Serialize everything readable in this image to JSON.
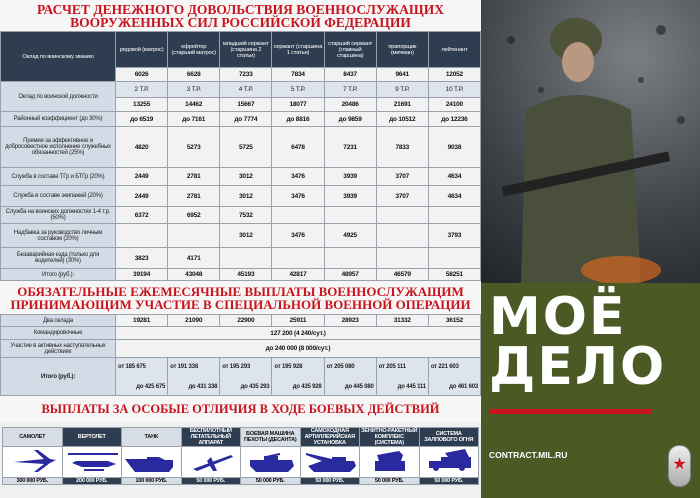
{
  "section1": {
    "title_line1": "РАСЧЕТ ДЕНЕЖНОГО ДОВОЛЬСТВИЯ ВОЕННОСЛУЖАЩИХ",
    "title_line2": "ВООРУЖЕННЫХ СИЛ РОССИЙСКОЙ ФЕДЕРАЦИИ",
    "rank_label": "Оклад по воинскому званию",
    "ranks": [
      "рядовой (матрос)",
      "ефрейтор (старший матрос)",
      "младший сержант (старшина 2 статьи)",
      "сержант (старшина 1 статьи)",
      "старший сержант (главный старшина)",
      "прапорщик (мичман)",
      "лейтенант"
    ],
    "rank_salary": [
      "6026",
      "6628",
      "7233",
      "7834",
      "8437",
      "9641",
      "12052"
    ],
    "position_label": "Оклад по воинской должности",
    "position_grade": [
      "2 Т.Р.",
      "3 Т.Р.",
      "4 Т.Р.",
      "5 Т.Р.",
      "7 Т.Р.",
      "9 Т.Р.",
      "10 Т.Р."
    ],
    "position_salary": [
      "13255",
      "14462",
      "15667",
      "18077",
      "20486",
      "21691",
      "24100"
    ],
    "rows": [
      {
        "label": "Районный коэффициент (до 30%)",
        "values": [
          "до 6519",
          "до 7161",
          "до 7774",
          "до 8816",
          "до 9859",
          "до 10512",
          "до 12236"
        ]
      },
      {
        "label": "Премия за эффективное и добросовестное исполнение служебных обязанностей (25%)",
        "values": [
          "4820",
          "5273",
          "5725",
          "6478",
          "7231",
          "7833",
          "9038"
        ]
      },
      {
        "label": "Служба в составе ТГр и БТГр (20%)",
        "values": [
          "2449",
          "2781",
          "3012",
          "3476",
          "3939",
          "3707",
          "4634"
        ]
      },
      {
        "label": "Служба в составе экипажей (20%)",
        "values": [
          "2449",
          "2781",
          "3012",
          "3476",
          "3939",
          "3707",
          "4634"
        ]
      },
      {
        "label": "Служба на воинских должностях 1-4 т.р. (50%)",
        "values": [
          "6372",
          "6952",
          "7532",
          "",
          "",
          "",
          ""
        ]
      },
      {
        "label": "Надбавка за руководство личным составом (20%)",
        "values": [
          "",
          "",
          "3012",
          "3476",
          "4925",
          "",
          "3793"
        ]
      },
      {
        "label": "Безаварийная езда (только для водителей) (30%)",
        "values": [
          "3823",
          "4171",
          "",
          "",
          "",
          "",
          ""
        ]
      },
      {
        "label": "Итого (руб.):",
        "values": [
          "39194",
          "43048",
          "45193",
          "42817",
          "48957",
          "46579",
          "58251"
        ]
      }
    ]
  },
  "section2": {
    "title_line1": "ОБЯЗАТЕЛЬНЫЕ ЕЖЕМЕСЯЧНЫЕ ВЫПЛАТЫ ВОЕННОСЛУЖАЩИМ",
    "title_line2": "ПРИНИМАЮЩИМ УЧАСТИЕ В СПЕЦИАЛЬНОЙ ВОЕННОЙ ОПЕРАЦИИ",
    "two_salaries_label": "Два оклада",
    "two_salaries": [
      "19281",
      "21090",
      "22900",
      "25911",
      "28923",
      "31332",
      "36152"
    ],
    "travel_label": "Командировочные",
    "travel_value": "127 200 (4 240/сут.)",
    "offensive_label": "Участие в активных наступательных действиях",
    "offensive_value": "до 240 000 (8 000/сут.)",
    "total_label": "Итого (руб.):",
    "totals": [
      {
        "from": "от 185 675",
        "to": "до 425 675"
      },
      {
        "from": "от 191 338",
        "to": "до 431 338"
      },
      {
        "from": "от 195 293",
        "to": "до 435 293"
      },
      {
        "from": "от 195 928",
        "to": "до 435 928"
      },
      {
        "from": "от 205 080",
        "to": "до 445 080"
      },
      {
        "from": "от 205 111",
        "to": "до 445 111"
      },
      {
        "from": "от 221 603",
        "to": "до 461 603"
      }
    ]
  },
  "section3": {
    "title": "ВЫПЛАТЫ ЗА ОСОБЫЕ ОТЛИЧИЯ В ХОДЕ БОЕВЫХ ДЕЙСТВИЙ",
    "awards": [
      {
        "name": "САМОЛЕТ",
        "amount": "300 000 РУБ.",
        "icon": "airplane-icon"
      },
      {
        "name": "ВЕРТОЛЕТ",
        "amount": "200 000 РУБ.",
        "icon": "helicopter-icon"
      },
      {
        "name": "ТАНК",
        "amount": "100 000 РУБ.",
        "icon": "tank-icon"
      },
      {
        "name": "БЕСПИЛОТНЫЙ ЛЕТАТЕЛЬНЫЙ АППАРАТ",
        "amount": "50 000 РУБ.",
        "icon": "drone-icon"
      },
      {
        "name": "БОЕВАЯ МАШИНА ПЕХОТЫ (ДЕСАНТА)",
        "amount": "50 000 РУБ.",
        "icon": "ifv-icon"
      },
      {
        "name": "САМОХОДНАЯ АРТИЛЛЕРИЙСКАЯ УСТАНОВКА",
        "amount": "50 000 РУБ.",
        "icon": "artillery-icon"
      },
      {
        "name": "ЗЕНИТНО-РАКЕТНЫЙ КОМПЛЕКС (СИСТЕМА)",
        "amount": "50 000 РУБ.",
        "icon": "sam-icon"
      },
      {
        "name": "СИСТЕМА ЗАЛПОВОГО ОГНЯ",
        "amount": "50 000 РУБ.",
        "icon": "mlrs-icon"
      }
    ]
  },
  "brand": {
    "line1": "МОЁ",
    "line2": "ДЕЛО",
    "url": "CONTRACT.MIL.RU",
    "bg": "#4b5a24",
    "accent": "#c8141e"
  }
}
